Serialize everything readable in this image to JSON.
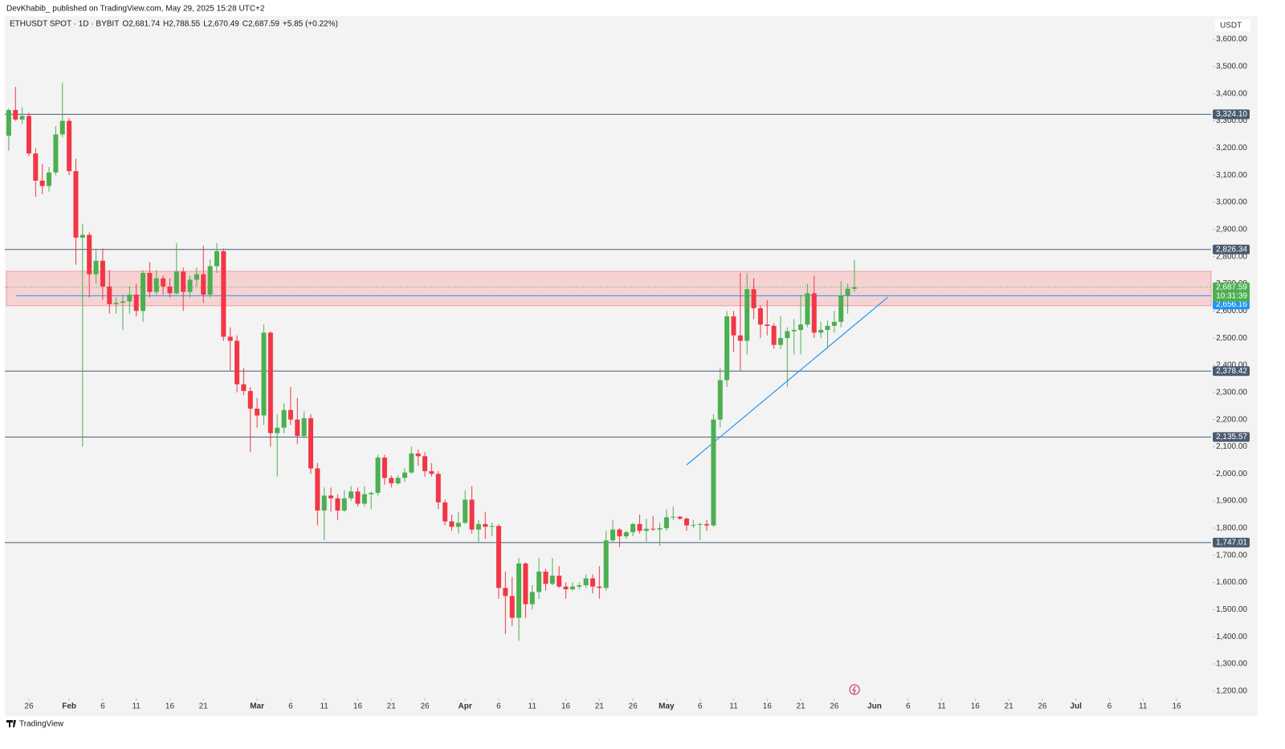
{
  "header": {
    "publisher": "DevKhabib_ published on TradingView.com, May 29, 2025 15:28 UTC+2",
    "brand": "TradingView"
  },
  "chart_data": {
    "type": "candlestick",
    "symbol": "ETHUSDT SPOT · 1D · BYBIT",
    "currency": "USDT",
    "legend_values": [
      {
        "key": "O",
        "value": "2,681.74"
      },
      {
        "key": "H",
        "value": "2,788.55"
      },
      {
        "key": "L",
        "value": "2,670.49"
      },
      {
        "key": "C",
        "value": "2,687.59"
      }
    ],
    "change": "+5.85 (+0.22%)",
    "x": [
      "Jan 23",
      "Jan 24",
      "Jan 25",
      "Jan 26",
      "Jan 27",
      "Jan 28",
      "Jan 29",
      "Jan 30",
      "Jan 31",
      "Feb 1",
      "Feb 2",
      "Feb 3",
      "Feb 4",
      "Feb 5",
      "Feb 6",
      "Feb 7",
      "Feb 8",
      "Feb 9",
      "Feb 10",
      "Feb 11",
      "Feb 12",
      "Feb 13",
      "Feb 14",
      "Feb 15",
      "Feb 16",
      "Feb 17",
      "Feb 18",
      "Feb 19",
      "Feb 20",
      "Feb 21",
      "Feb 22",
      "Feb 23",
      "Feb 24",
      "Feb 25",
      "Feb 26",
      "Feb 27",
      "Feb 28",
      "Mar 1",
      "Mar 2",
      "Mar 3",
      "Mar 4",
      "Mar 5",
      "Mar 6",
      "Mar 7",
      "Mar 8",
      "Mar 9",
      "Mar 10",
      "Mar 11",
      "Mar 12",
      "Mar 13",
      "Mar 14",
      "Mar 15",
      "Mar 16",
      "Mar 17",
      "Mar 18",
      "Mar 19",
      "Mar 20",
      "Mar 21",
      "Mar 22",
      "Mar 23",
      "Mar 24",
      "Mar 25",
      "Mar 26",
      "Mar 27",
      "Mar 28",
      "Mar 29",
      "Mar 30",
      "Mar 31",
      "Apr 1",
      "Apr 2",
      "Apr 3",
      "Apr 4",
      "Apr 5",
      "Apr 6",
      "Apr 7",
      "Apr 8",
      "Apr 9",
      "Apr 10",
      "Apr 11",
      "Apr 12",
      "Apr 13",
      "Apr 14",
      "Apr 15",
      "Apr 16",
      "Apr 17",
      "Apr 18",
      "Apr 19",
      "Apr 20",
      "Apr 21",
      "Apr 22",
      "Apr 23",
      "Apr 24",
      "Apr 25",
      "Apr 26",
      "Apr 27",
      "Apr 28",
      "Apr 29",
      "Apr 30",
      "May 1",
      "May 2",
      "May 3",
      "May 4",
      "May 5",
      "May 6",
      "May 7",
      "May 8",
      "May 9",
      "May 10",
      "May 11",
      "May 12",
      "May 13",
      "May 14",
      "May 15",
      "May 16",
      "May 17",
      "May 18",
      "May 19",
      "May 20",
      "May 21",
      "May 22",
      "May 23",
      "May 24",
      "May 25",
      "May 26",
      "May 27",
      "May 28",
      "May 29"
    ],
    "open": [
      3245,
      3340,
      3305,
      3318,
      3180,
      3080,
      3060,
      3110,
      3250,
      3300,
      3115,
      2870,
      2880,
      2735,
      2785,
      2690,
      2625,
      2630,
      2635,
      2660,
      2600,
      2740,
      2670,
      2720,
      2690,
      2665,
      2745,
      2670,
      2715,
      2735,
      2660,
      2765,
      2820,
      2505,
      2490,
      2330,
      2305,
      2240,
      2215,
      2520,
      2150,
      2170,
      2235,
      2200,
      2140,
      2205,
      2020,
      1865,
      1920,
      1910,
      1865,
      1910,
      1935,
      1890,
      1925,
      1930,
      2060,
      1985,
      1965,
      1985,
      2005,
      2075,
      2065,
      2010,
      2000,
      1895,
      1825,
      1805,
      1820,
      1905,
      1795,
      1815,
      1805,
      1808,
      1580,
      1550,
      1470,
      1670,
      1520,
      1565,
      1640,
      1595,
      1625,
      1585,
      1575,
      1585,
      1590,
      1615,
      1585,
      1580,
      1755,
      1795,
      1770,
      1785,
      1815,
      1790,
      1798,
      1795,
      1800,
      1840,
      1842,
      1835,
      1810,
      1812,
      1815,
      1810,
      2200,
      2345,
      2580,
      2510,
      2490,
      2680,
      2610,
      2550,
      2545,
      2475,
      2500,
      2525,
      2530,
      2550,
      2665,
      2520,
      2530,
      2545,
      2560,
      2655,
      2681.74
    ],
    "high": [
      3345,
      3425,
      3350,
      3330,
      3200,
      3140,
      3130,
      3280,
      3440,
      3310,
      3160,
      2920,
      2890,
      2830,
      2830,
      2750,
      2650,
      2660,
      2690,
      2700,
      2750,
      2780,
      2750,
      2730,
      2720,
      2850,
      2760,
      2730,
      2760,
      2840,
      2790,
      2850,
      2830,
      2540,
      2510,
      2390,
      2320,
      2280,
      2550,
      2525,
      2220,
      2260,
      2320,
      2280,
      2230,
      2220,
      2040,
      1950,
      1950,
      1925,
      1940,
      1955,
      1950,
      1955,
      1935,
      2070,
      2070,
      1995,
      1995,
      2020,
      2100,
      2090,
      2080,
      2040,
      2010,
      1905,
      1850,
      1860,
      1940,
      1955,
      1830,
      1860,
      1820,
      1815,
      1640,
      1620,
      1690,
      1675,
      1590,
      1690,
      1650,
      1690,
      1660,
      1600,
      1600,
      1600,
      1630,
      1630,
      1660,
      1790,
      1830,
      1800,
      1790,
      1820,
      1850,
      1835,
      1845,
      1820,
      1870,
      1880,
      1845,
      1840,
      1830,
      1820,
      1830,
      2220,
      2390,
      2600,
      2600,
      2740,
      2740,
      2720,
      2620,
      2640,
      2555,
      2580,
      2540,
      2570,
      2660,
      2700,
      2730,
      2560,
      2565,
      2600,
      2710,
      2700,
      2788.55
    ],
    "low": [
      3190,
      3300,
      3290,
      3170,
      3020,
      3030,
      3040,
      3100,
      3240,
      3100,
      2770,
      2100,
      2650,
      2700,
      2640,
      2590,
      2590,
      2530,
      2590,
      2580,
      2560,
      2650,
      2660,
      2660,
      2650,
      2660,
      2600,
      2650,
      2690,
      2630,
      2650,
      2740,
      2490,
      2380,
      2300,
      2290,
      2080,
      2170,
      2180,
      2100,
      1990,
      2150,
      2180,
      2110,
      2130,
      2000,
      1810,
      1755,
      1860,
      1830,
      1860,
      1900,
      1880,
      1880,
      1870,
      1920,
      1960,
      1950,
      1960,
      1970,
      2000,
      2030,
      1990,
      1990,
      1870,
      1810,
      1790,
      1780,
      1815,
      1780,
      1750,
      1760,
      1770,
      1540,
      1410,
      1440,
      1385,
      1470,
      1500,
      1540,
      1570,
      1590,
      1580,
      1540,
      1570,
      1575,
      1580,
      1560,
      1540,
      1570,
      1750,
      1730,
      1760,
      1770,
      1780,
      1750,
      1790,
      1735,
      1790,
      1830,
      1830,
      1790,
      1800,
      1755,
      1790,
      1805,
      2170,
      2320,
      2450,
      2380,
      2440,
      2570,
      2500,
      2510,
      2460,
      2460,
      2320,
      2440,
      2440,
      2540,
      2500,
      2500,
      2460,
      2520,
      2540,
      2590,
      2670.49
    ],
    "close": [
      3340,
      3305,
      3318,
      3180,
      3080,
      3060,
      3110,
      3250,
      3300,
      3115,
      2870,
      2880,
      2735,
      2785,
      2690,
      2625,
      2630,
      2635,
      2660,
      2600,
      2740,
      2670,
      2720,
      2690,
      2665,
      2745,
      2670,
      2715,
      2735,
      2660,
      2765,
      2820,
      2505,
      2490,
      2330,
      2305,
      2240,
      2215,
      2520,
      2150,
      2170,
      2235,
      2200,
      2140,
      2205,
      2020,
      1865,
      1920,
      1910,
      1865,
      1910,
      1935,
      1890,
      1925,
      1930,
      2060,
      1985,
      1965,
      1985,
      2005,
      2075,
      2065,
      2010,
      2000,
      1895,
      1825,
      1805,
      1820,
      1905,
      1795,
      1815,
      1805,
      1808,
      1580,
      1550,
      1470,
      1670,
      1520,
      1565,
      1640,
      1595,
      1625,
      1585,
      1575,
      1585,
      1590,
      1615,
      1585,
      1580,
      1755,
      1795,
      1770,
      1785,
      1815,
      1790,
      1798,
      1795,
      1800,
      1840,
      1842,
      1835,
      1810,
      1812,
      1815,
      1810,
      2200,
      2345,
      2580,
      2510,
      2490,
      2680,
      2610,
      2550,
      2545,
      2475,
      2500,
      2525,
      2530,
      2550,
      2665,
      2520,
      2530,
      2545,
      2560,
      2655,
      2681.74,
      2687.59
    ],
    "up_color": "#4caf50",
    "down_color": "#f23645",
    "ylim": [
      1173,
      3686
    ],
    "yticks": [
      {
        "value": 1200,
        "label": "1,200.00"
      },
      {
        "value": 1300,
        "label": "1,300.00"
      },
      {
        "value": 1400,
        "label": "1,400.00"
      },
      {
        "value": 1500,
        "label": "1,500.00"
      },
      {
        "value": 1600,
        "label": "1,600.00"
      },
      {
        "value": 1700,
        "label": "1,700.00"
      },
      {
        "value": 1800,
        "label": "1,800.00"
      },
      {
        "value": 1900,
        "label": "1,900.00"
      },
      {
        "value": 2000,
        "label": "2,000.00"
      },
      {
        "value": 2100,
        "label": "2,100.00"
      },
      {
        "value": 2200,
        "label": "2,200.00"
      },
      {
        "value": 2300,
        "label": "2,300.00"
      },
      {
        "value": 2400,
        "label": "2,400.00"
      },
      {
        "value": 2500,
        "label": "2,500.00"
      },
      {
        "value": 2600,
        "label": "2,600.00"
      },
      {
        "value": 2700,
        "label": "2,700.00"
      },
      {
        "value": 2800,
        "label": "2,800.00"
      },
      {
        "value": 2900,
        "label": "2,900.00"
      },
      {
        "value": 3000,
        "label": "3,000.00"
      },
      {
        "value": 3100,
        "label": "3,100.00"
      },
      {
        "value": 3200,
        "label": "3,200.00"
      },
      {
        "value": 3300,
        "label": "3,300.00"
      },
      {
        "value": 3400,
        "label": "3,400.00"
      },
      {
        "value": 3500,
        "label": "3,500.00"
      },
      {
        "value": 3600,
        "label": "3,600.00"
      }
    ],
    "xticks": [
      {
        "value": "Jan 26",
        "label": "26"
      },
      {
        "value": "Feb 1",
        "label": "Feb"
      },
      {
        "value": "Feb 6",
        "label": "6"
      },
      {
        "value": "Feb 11",
        "label": "11"
      },
      {
        "value": "Feb 16",
        "label": "16"
      },
      {
        "value": "Feb 21",
        "label": "21"
      },
      {
        "value": "Mar 1",
        "label": "Mar"
      },
      {
        "value": "Mar 6",
        "label": "6"
      },
      {
        "value": "Mar 11",
        "label": "11"
      },
      {
        "value": "Mar 16",
        "label": "16"
      },
      {
        "value": "Mar 21",
        "label": "21"
      },
      {
        "value": "Mar 26",
        "label": "26"
      },
      {
        "value": "Apr 1",
        "label": "Apr"
      },
      {
        "value": "Apr 6",
        "label": "6"
      },
      {
        "value": "Apr 11",
        "label": "11"
      },
      {
        "value": "Apr 16",
        "label": "16"
      },
      {
        "value": "Apr 21",
        "label": "21"
      },
      {
        "value": "Apr 26",
        "label": "26"
      },
      {
        "value": "May 1",
        "label": "May"
      },
      {
        "value": "May 6",
        "label": "6"
      },
      {
        "value": "May 11",
        "label": "11"
      },
      {
        "value": "May 16",
        "label": "16"
      },
      {
        "value": "May 21",
        "label": "21"
      },
      {
        "value": "May 26",
        "label": "26"
      },
      {
        "value": "Jun 1",
        "label": "Jun"
      },
      {
        "value": "Jun 6",
        "label": "6"
      },
      {
        "value": "Jun 11",
        "label": "11"
      },
      {
        "value": "Jun 16",
        "label": "16"
      },
      {
        "value": "Jun 21",
        "label": "21"
      },
      {
        "value": "Jun 26",
        "label": "26"
      },
      {
        "value": "Jul 1",
        "label": "Jul"
      },
      {
        "value": "Jul 6",
        "label": "6"
      },
      {
        "value": "Jul 11",
        "label": "11"
      },
      {
        "value": "Jul 16",
        "label": "16"
      }
    ],
    "grid": false,
    "levels": [
      {
        "value": 3324.1,
        "label": "3,324.10"
      },
      {
        "value": 2826.34,
        "label": "2,826.34"
      },
      {
        "value": 2378.42,
        "label": "2,378.42"
      },
      {
        "value": 2135.57,
        "label": "2,135.57"
      },
      {
        "value": 1747.01,
        "label": "1,747.01"
      }
    ],
    "level_color": "#4a5b70",
    "support_line": {
      "value": 2656.16,
      "label": "2,656.16",
      "color": "#2196f3"
    },
    "zone": {
      "from": 2619,
      "to": 2746,
      "color": "#f7b6b6"
    },
    "last_price": {
      "value": 2687.59,
      "label": "2,687.59",
      "countdown": "10:31:39"
    },
    "trendline": {
      "x": [
        "May 4",
        "Jun 3"
      ],
      "y": [
        2033,
        2651
      ],
      "color": "#2196f3"
    }
  }
}
